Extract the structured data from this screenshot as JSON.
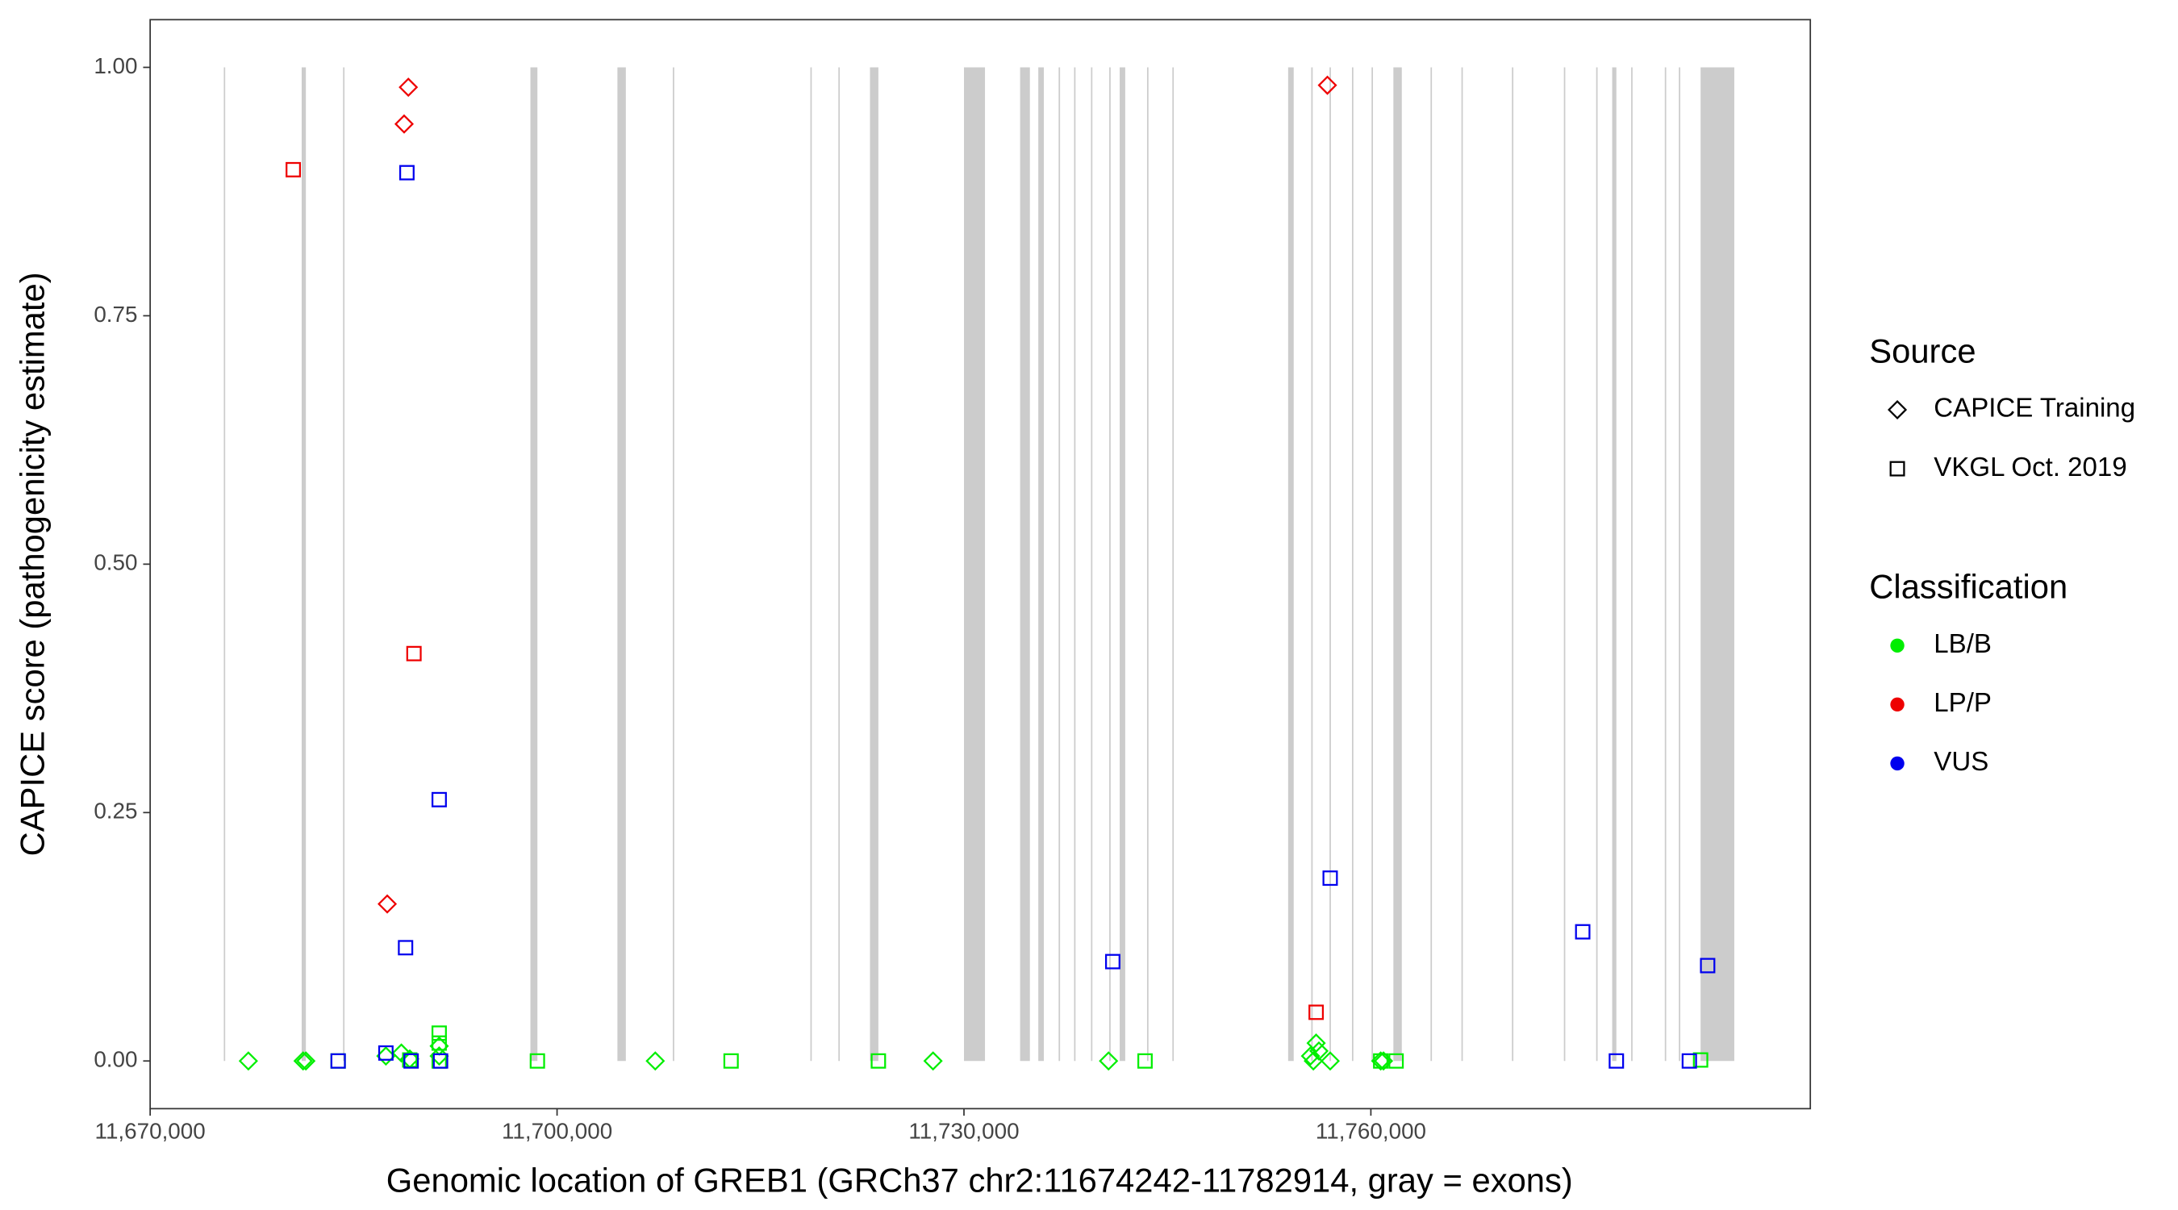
{
  "chart_data": {
    "type": "scatter",
    "x_label": "Genomic location of GREB1 (GRCh37 chr2:11674242-11782914, gray = exons)",
    "y_label": "CAPICE score (pathogenicity estimate)",
    "xlim": [
      11670000,
      11792400
    ],
    "ylim": [
      -0.048,
      1.048
    ],
    "xticks": [
      {
        "value": 11670000,
        "label": "11,670,000"
      },
      {
        "value": 11700000,
        "label": "11,700,000"
      },
      {
        "value": 11730000,
        "label": "11,730,000"
      },
      {
        "value": 11760000,
        "label": "11,760,000"
      }
    ],
    "yticks": [
      {
        "value": 0,
        "label": "0.00"
      },
      {
        "value": 0.25,
        "label": "0.25"
      },
      {
        "value": 0.5,
        "label": "0.50"
      },
      {
        "value": 0.75,
        "label": "0.75"
      },
      {
        "value": 1,
        "label": "1.00"
      }
    ],
    "exon_color": "#cccccc",
    "exons": [
      {
        "start": 11675430,
        "end": 11675530
      },
      {
        "start": 11681170,
        "end": 11681480
      },
      {
        "start": 11684225,
        "end": 11684328
      },
      {
        "start": 11698035,
        "end": 11698552
      },
      {
        "start": 11704450,
        "end": 11705071
      },
      {
        "start": 11708535,
        "end": 11708640
      },
      {
        "start": 11718675,
        "end": 11718780
      },
      {
        "start": 11720740,
        "end": 11720845
      },
      {
        "start": 11723070,
        "end": 11723690
      },
      {
        "start": 11730000,
        "end": 11731550
      },
      {
        "start": 11734140,
        "end": 11734860
      },
      {
        "start": 11735480,
        "end": 11735890
      },
      {
        "start": 11736980,
        "end": 11737085
      },
      {
        "start": 11738120,
        "end": 11738225
      },
      {
        "start": 11739365,
        "end": 11739470
      },
      {
        "start": 11740710,
        "end": 11740815
      },
      {
        "start": 11741480,
        "end": 11741890
      },
      {
        "start": 11743500,
        "end": 11743600
      },
      {
        "start": 11745365,
        "end": 11745470
      },
      {
        "start": 11753900,
        "end": 11754310
      },
      {
        "start": 11755605,
        "end": 11755710
      },
      {
        "start": 11756950,
        "end": 11757055
      },
      {
        "start": 11758605,
        "end": 11758710
      },
      {
        "start": 11760050,
        "end": 11760155
      },
      {
        "start": 11761660,
        "end": 11762280
      },
      {
        "start": 11764400,
        "end": 11764500
      },
      {
        "start": 11766675,
        "end": 11766780
      },
      {
        "start": 11770400,
        "end": 11770505
      },
      {
        "start": 11774230,
        "end": 11774330
      },
      {
        "start": 11776610,
        "end": 11776715
      },
      {
        "start": 11777790,
        "end": 11778100
      },
      {
        "start": 11779190,
        "end": 11779295
      },
      {
        "start": 11781670,
        "end": 11781775
      },
      {
        "start": 11782705,
        "end": 11782810
      },
      {
        "start": 11784310,
        "end": 11786795
      }
    ],
    "source_title": "Source",
    "class_title": "Classification",
    "classes": [
      {
        "name": "LB/B",
        "color": "#00ee00"
      },
      {
        "name": "LP/P",
        "color": "#ee0000"
      },
      {
        "name": "VUS",
        "color": "#0000ee"
      }
    ],
    "sources": [
      {
        "name": "CAPICE Training",
        "shape": "diamond",
        "series": [
          {
            "x": [
              11677240,
              11681275,
              11681480,
              11687380,
              11688520,
              11689140,
              11691310,
              11691310,
              11707240,
              11727720,
              11740660,
              11755550,
              11755760,
              11755965,
              11756170,
              11757000,
              11760725,
              11760930
            ],
            "y": [
              0,
              0,
              0,
              0.005,
              0.008,
              0.002,
              0.015,
              0.005,
              0,
              0,
              0,
              0.005,
              0,
              0.018,
              0.01,
              0,
              0,
              0
            ]
          },
          {
            "x": [
              11689035,
              11688725,
              11687480,
              11756795
            ],
            "y": [
              0.98,
              0.943,
              0.158,
              0.982
            ]
          },
          {
            "x": [],
            "y": []
          }
        ]
      },
      {
        "name": "VKGL Oct. 2019",
        "shape": "square",
        "series": [
          {
            "x": [
              11683860,
              11689140,
              11691310,
              11691310,
              11691310,
              11698550,
              11712830,
              11723690,
              11743350,
              11760725,
              11761860,
              11784310
            ],
            "y": [
              0,
              0.001,
              0.028,
              0.018,
              0,
              0,
              0,
              0,
              0,
              0,
              0,
              0.001
            ]
          },
          {
            "x": [
              11680550,
              11689450,
              11755965
            ],
            "y": [
              0.897,
              0.41,
              0.049
            ]
          },
          {
            "x": [
              11688930,
              11691310,
              11688830,
              11687380,
              11683860,
              11689240,
              11691410,
              11740970,
              11757000,
              11775620,
              11778100,
              11783480,
              11784830
            ],
            "y": [
              0.894,
              0.263,
              0.114,
              0.008,
              0,
              0,
              0,
              0.1,
              0.184,
              0.13,
              0,
              0,
              0.096
            ]
          }
        ]
      }
    ]
  }
}
